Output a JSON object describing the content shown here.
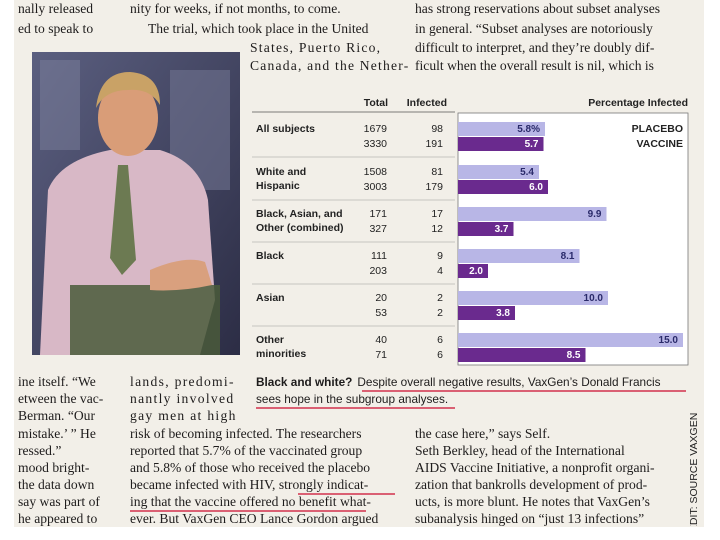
{
  "top_text": {
    "left": [
      "nally released",
      "ed to speak to"
    ],
    "middle": [
      "nity for weeks, if not months, to come.",
      "The trial, which took place in the United",
      "States, Puerto Rico,",
      "Canada, and the Nether-"
    ],
    "right": [
      "has strong reservations about subset analyses",
      "in general. “Subset analyses are notoriously",
      "difficult to interpret, and they’re doubly dif-",
      "ficult when the overall result is nil, which is"
    ]
  },
  "chart_data": {
    "type": "bar",
    "orientation": "horizontal",
    "title": "Percentage Infected",
    "columns": [
      "Total",
      "Infected"
    ],
    "categories": [
      [
        "All subjects"
      ],
      [
        "White and",
        "Hispanic"
      ],
      [
        "Black, Asian, and",
        "Other (combined)"
      ],
      [
        "Black"
      ],
      [
        "Asian"
      ],
      [
        "Other",
        "minorities"
      ]
    ],
    "series": [
      {
        "name": "PLACEBO",
        "color": "#b8b6e6",
        "label_color": "#5a5ac8",
        "totals": [
          1679,
          1508,
          171,
          111,
          20,
          40
        ],
        "infected": [
          98,
          81,
          17,
          9,
          2,
          6
        ],
        "values": [
          5.8,
          5.4,
          9.9,
          8.1,
          10.0,
          15.0
        ],
        "value_labels": [
          "5.8%",
          "5.4",
          "9.9",
          "8.1",
          "10.0",
          "15.0"
        ]
      },
      {
        "name": "VACCINE",
        "color": "#6a2a8e",
        "label_color": "#7a1f8c",
        "totals": [
          3330,
          3003,
          327,
          203,
          53,
          71
        ],
        "infected": [
          191,
          179,
          12,
          4,
          2,
          6
        ],
        "values": [
          5.7,
          6.0,
          3.7,
          2.0,
          3.8,
          8.5
        ],
        "value_labels": [
          "5.7",
          "6.0",
          "3.7",
          "2.0",
          "3.8",
          "8.5"
        ]
      }
    ]
  },
  "caption": {
    "lead": "Black and white?",
    "lines": [
      "Despite overall negative results, VaxGen’s Donald Francis",
      "sees hope in the subgroup analyses."
    ]
  },
  "bottom_text": {
    "left": [
      "ine itself. “We",
      "etween the vac-",
      "Berman. “Our",
      "mistake.’ ” He",
      "ressed.”",
      "mood bright-",
      "the data down",
      "say was part of",
      "he appeared to"
    ],
    "middle": [
      "lands, predomi-",
      "nantly involved",
      "gay men at high",
      "risk of becoming infected. The researchers",
      "reported that 5.7% of the vaccinated group",
      "and 5.8% of those who received the placebo",
      "became infected with HIV, strongly indicat-",
      "ing that the vaccine offered no benefit what-",
      "ever. But VaxGen CEO Lance Gordon argued"
    ],
    "right": [
      "the case here,” says Self.",
      "Seth Berkley, head of the International",
      "AIDS Vaccine Initiative, a nonprofit organi-",
      "zation that bankrolls development of prod-",
      "ucts, is more blunt. He notes that VaxGen’s",
      "subanalysis hinged on “just 13 infections”"
    ]
  },
  "credit": "CREDIT: SOURCE VAXGEN"
}
